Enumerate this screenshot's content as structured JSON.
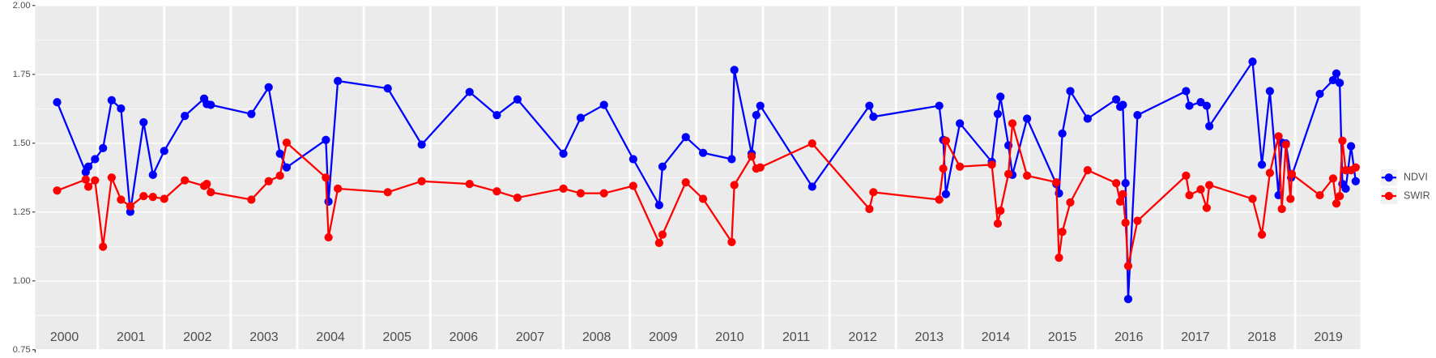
{
  "chart_data": {
    "type": "line",
    "ylim": [
      0.75,
      2.0
    ],
    "yticks": [
      {
        "value": 0.75,
        "label": "0.75"
      },
      {
        "value": 1.0,
        "label": "1.00"
      },
      {
        "value": 1.25,
        "label": "1.25"
      },
      {
        "value": 1.5,
        "label": "1.50"
      },
      {
        "value": 1.75,
        "label": "1.75"
      },
      {
        "value": 2.0,
        "label": "2.00"
      }
    ],
    "xlim": [
      2000.06,
      2019.98
    ],
    "year_labels": [
      2000,
      2001,
      2002,
      2003,
      2004,
      2005,
      2006,
      2007,
      2008,
      2009,
      2010,
      2011,
      2012,
      2013,
      2014,
      2015,
      2016,
      2017,
      2018,
      2019
    ],
    "grid": true,
    "legend": "right",
    "series": [
      {
        "name": "NDVI",
        "color": "#0000ff",
        "x": [
          2000.39,
          2000.82,
          2000.86,
          2000.96,
          2001.08,
          2001.21,
          2001.35,
          2001.49,
          2001.69,
          2001.83,
          2002.0,
          2002.31,
          2002.6,
          2002.64,
          2002.7,
          2003.31,
          2003.57,
          2003.74,
          2003.84,
          2004.43,
          2004.47,
          2004.61,
          2005.36,
          2005.87,
          2006.59,
          2007.0,
          2007.31,
          2008.0,
          2008.26,
          2008.61,
          2009.05,
          2009.44,
          2009.49,
          2009.84,
          2010.1,
          2010.53,
          2010.57,
          2010.83,
          2010.9,
          2010.96,
          2011.74,
          2012.6,
          2012.66,
          2013.65,
          2013.71,
          2013.75,
          2013.96,
          2014.44,
          2014.53,
          2014.57,
          2014.69,
          2014.75,
          2014.97,
          2015.41,
          2015.45,
          2015.5,
          2015.62,
          2015.88,
          2016.31,
          2016.37,
          2016.41,
          2016.45,
          2016.49,
          2016.63,
          2017.36,
          2017.41,
          2017.58,
          2017.67,
          2017.71,
          2018.36,
          2018.5,
          2018.62,
          2018.75,
          2018.8,
          2018.86,
          2018.94,
          2019.37,
          2019.57,
          2019.62,
          2019.67,
          2019.71,
          2019.76,
          2019.84,
          2019.91
        ],
        "values": [
          1.649,
          1.395,
          1.415,
          1.442,
          1.482,
          1.656,
          1.626,
          1.251,
          1.576,
          1.385,
          1.472,
          1.599,
          1.662,
          1.642,
          1.639,
          1.606,
          1.703,
          1.462,
          1.412,
          1.512,
          1.288,
          1.726,
          1.699,
          1.495,
          1.686,
          1.602,
          1.659,
          1.462,
          1.592,
          1.639,
          1.442,
          1.275,
          1.415,
          1.522,
          1.465,
          1.442,
          1.766,
          1.462,
          1.602,
          1.636,
          1.342,
          1.636,
          1.596,
          1.636,
          1.512,
          1.315,
          1.572,
          1.432,
          1.606,
          1.669,
          1.492,
          1.385,
          1.589,
          1.352,
          1.318,
          1.535,
          1.689,
          1.589,
          1.659,
          1.632,
          1.639,
          1.355,
          0.934,
          1.602,
          1.689,
          1.636,
          1.649,
          1.636,
          1.562,
          1.796,
          1.422,
          1.689,
          1.311,
          1.502,
          1.499,
          1.375,
          1.679,
          1.729,
          1.753,
          1.719,
          1.352,
          1.335,
          1.489,
          1.362
        ]
      },
      {
        "name": "SWIR",
        "color": "#ff0000",
        "x": [
          2000.39,
          2000.82,
          2000.86,
          2000.96,
          2001.08,
          2001.21,
          2001.35,
          2001.49,
          2001.69,
          2001.83,
          2002.0,
          2002.31,
          2002.6,
          2002.64,
          2002.7,
          2003.31,
          2003.57,
          2003.74,
          2003.84,
          2004.43,
          2004.47,
          2004.61,
          2005.36,
          2005.87,
          2006.59,
          2007.0,
          2007.31,
          2008.0,
          2008.26,
          2008.61,
          2009.05,
          2009.44,
          2009.49,
          2009.84,
          2010.1,
          2010.53,
          2010.57,
          2010.83,
          2010.9,
          2010.96,
          2011.74,
          2012.6,
          2012.66,
          2013.65,
          2013.71,
          2013.75,
          2013.96,
          2014.44,
          2014.53,
          2014.57,
          2014.69,
          2014.75,
          2014.97,
          2015.41,
          2015.45,
          2015.5,
          2015.62,
          2015.88,
          2016.31,
          2016.37,
          2016.41,
          2016.45,
          2016.49,
          2016.63,
          2017.36,
          2017.41,
          2017.58,
          2017.67,
          2017.71,
          2018.36,
          2018.5,
          2018.62,
          2018.75,
          2018.8,
          2018.86,
          2018.93,
          2018.95,
          2019.37,
          2019.57,
          2019.62,
          2019.67,
          2019.71,
          2019.76,
          2019.84,
          2019.91
        ],
        "values": [
          1.328,
          1.368,
          1.342,
          1.365,
          1.124,
          1.375,
          1.295,
          1.271,
          1.308,
          1.305,
          1.298,
          1.365,
          1.345,
          1.352,
          1.322,
          1.295,
          1.362,
          1.382,
          1.502,
          1.375,
          1.158,
          1.335,
          1.322,
          1.362,
          1.352,
          1.325,
          1.302,
          1.335,
          1.318,
          1.318,
          1.345,
          1.138,
          1.168,
          1.358,
          1.298,
          1.141,
          1.348,
          1.452,
          1.408,
          1.412,
          1.499,
          1.261,
          1.322,
          1.295,
          1.408,
          1.509,
          1.415,
          1.422,
          1.208,
          1.255,
          1.388,
          1.572,
          1.382,
          1.358,
          1.084,
          1.178,
          1.285,
          1.402,
          1.355,
          1.288,
          1.315,
          1.211,
          1.054,
          1.218,
          1.382,
          1.311,
          1.332,
          1.265,
          1.348,
          1.298,
          1.168,
          1.392,
          1.525,
          1.261,
          1.495,
          1.298,
          1.388,
          1.311,
          1.372,
          1.281,
          1.308,
          1.509,
          1.402,
          1.402,
          1.412
        ]
      }
    ]
  }
}
